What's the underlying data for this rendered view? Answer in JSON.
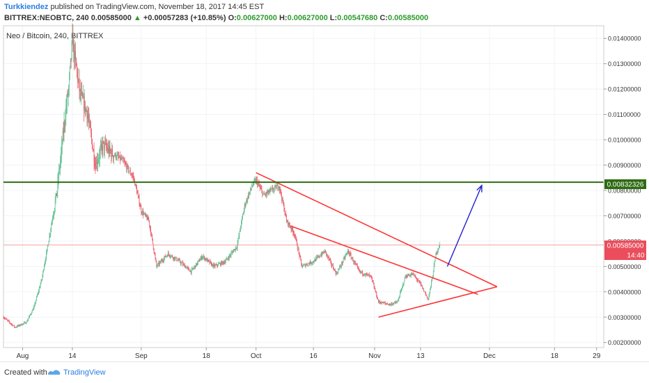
{
  "header": {
    "author": "Turkkiendez",
    "published_text": "published on TradingView.com, November 18, 2017 14:45 EST",
    "symbol_line": "BITTREX:NEOBTC, 240",
    "last_price": "0.00585000",
    "change": "+0.00057283 (+10.85%)",
    "o_label": "O:",
    "o_value": "0.00627000",
    "h_label": "H:",
    "h_value": "0.00627000",
    "l_label": "L:",
    "l_value": "0.00547680",
    "c_label": "C:",
    "c_value": "0.00585000"
  },
  "footer": {
    "created_with": "Created with",
    "brand": "TradingView"
  },
  "colors": {
    "up": "#53b987",
    "down": "#eb4d5c",
    "trendline": "#ff3333",
    "resistance": "#2e6b12",
    "projection_arrow": "#2222cc",
    "price_line": "#f0a0a0",
    "price_tag": "#eb4d5c"
  },
  "chart_data": {
    "type": "candlestick",
    "title": "Neo / Bitcoin, 240, BITTREX",
    "x_ticks": [
      "Aug",
      "14",
      "Sep",
      "18",
      "Oct",
      "16",
      "Nov",
      "13",
      "Dec",
      "18",
      "29"
    ],
    "y_ticks": [
      "0.01400000",
      "0.01300000",
      "0.01200000",
      "0.01100000",
      "0.01000000",
      "0.00900000",
      "0.00800000",
      "0.00700000",
      "0.00600000",
      "0.00500000",
      "0.00400000",
      "0.00300000",
      "0.00200000"
    ],
    "ylim": [
      0.0018,
      0.0145
    ],
    "grid": true,
    "price_series": [
      [
        "2017-07-27",
        0.003
      ],
      [
        "2017-07-30",
        0.0026
      ],
      [
        "2017-08-02",
        0.0028
      ],
      [
        "2017-08-04",
        0.0034
      ],
      [
        "2017-08-06",
        0.0045
      ],
      [
        "2017-08-08",
        0.0062
      ],
      [
        "2017-08-10",
        0.008
      ],
      [
        "2017-08-12",
        0.0108
      ],
      [
        "2017-08-13",
        0.012
      ],
      [
        "2017-08-14",
        0.0139
      ],
      [
        "2017-08-16",
        0.0118
      ],
      [
        "2017-08-18",
        0.011
      ],
      [
        "2017-08-20",
        0.009
      ],
      [
        "2017-08-22",
        0.0098
      ],
      [
        "2017-08-24",
        0.0095
      ],
      [
        "2017-08-27",
        0.0092
      ],
      [
        "2017-08-30",
        0.0085
      ],
      [
        "2017-09-01",
        0.0072
      ],
      [
        "2017-09-03",
        0.0068
      ],
      [
        "2017-09-05",
        0.005
      ],
      [
        "2017-09-08",
        0.0055
      ],
      [
        "2017-09-11",
        0.0052
      ],
      [
        "2017-09-14",
        0.0048
      ],
      [
        "2017-09-17",
        0.0054
      ],
      [
        "2017-09-20",
        0.005
      ],
      [
        "2017-09-23",
        0.0052
      ],
      [
        "2017-09-26",
        0.0058
      ],
      [
        "2017-09-28",
        0.0074
      ],
      [
        "2017-09-30",
        0.0082
      ],
      [
        "2017-10-01",
        0.0084
      ],
      [
        "2017-10-03",
        0.0078
      ],
      [
        "2017-10-05",
        0.008
      ],
      [
        "2017-10-07",
        0.0082
      ],
      [
        "2017-10-09",
        0.0068
      ],
      [
        "2017-10-11",
        0.0063
      ],
      [
        "2017-10-13",
        0.005
      ],
      [
        "2017-10-16",
        0.0052
      ],
      [
        "2017-10-19",
        0.0056
      ],
      [
        "2017-10-22",
        0.0047
      ],
      [
        "2017-10-25",
        0.0056
      ],
      [
        "2017-10-28",
        0.0048
      ],
      [
        "2017-10-31",
        0.0046
      ],
      [
        "2017-11-02",
        0.0036
      ],
      [
        "2017-11-05",
        0.0035
      ],
      [
        "2017-11-07",
        0.0036
      ],
      [
        "2017-11-09",
        0.0046
      ],
      [
        "2017-11-11",
        0.0047
      ],
      [
        "2017-11-13",
        0.0043
      ],
      [
        "2017-11-15",
        0.0037
      ],
      [
        "2017-11-16",
        0.0045
      ],
      [
        "2017-11-17",
        0.0055
      ],
      [
        "2017-11-18",
        0.00585
      ]
    ],
    "lines": [
      {
        "name": "descending-trendline-upper",
        "points": [
          [
            "2017-10-01",
            0.0087
          ],
          [
            "2017-12-03",
            0.0042
          ]
        ]
      },
      {
        "name": "descending-trendline-lower",
        "points": [
          [
            "2017-10-10",
            0.0066
          ],
          [
            "2017-11-28",
            0.0039
          ]
        ]
      },
      {
        "name": "ascending-trendline",
        "points": [
          [
            "2017-11-02",
            0.003
          ],
          [
            "2017-12-03",
            0.0042
          ]
        ]
      },
      {
        "name": "resistance-line",
        "points": [
          [
            "2017-07-27",
            0.00832326
          ],
          [
            "2017-12-31",
            0.00832326
          ]
        ]
      }
    ],
    "arrow": {
      "from": [
        "2017-11-20",
        0.005
      ],
      "to": [
        "2017-11-29",
        0.0082
      ]
    },
    "current_price": "0.00585000",
    "resistance_price": "0.00832326",
    "countdown": "14:40"
  }
}
